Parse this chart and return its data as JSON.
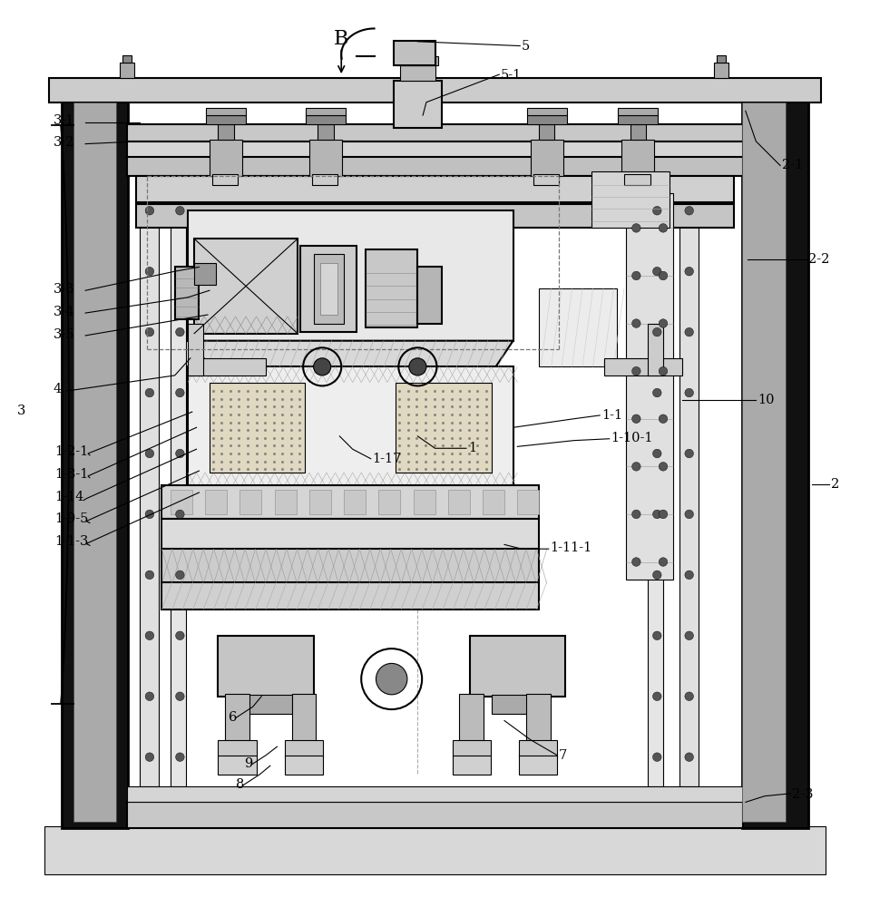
{
  "bg_color": "#ffffff",
  "line_color": "#000000",
  "gray_color": "#888888",
  "light_gray": "#cccccc",
  "dark_gray": "#555555",
  "figsize": [
    9.59,
    10.0
  ],
  "dpi": 100
}
